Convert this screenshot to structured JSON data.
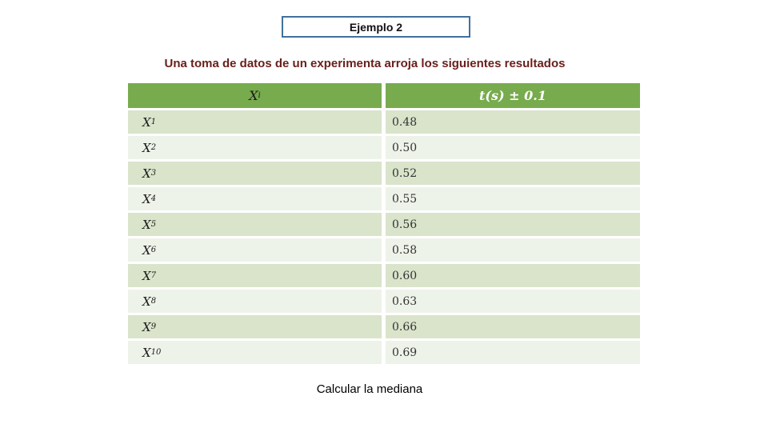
{
  "slide": {
    "background": "#ffffff"
  },
  "title_box": {
    "label": "Ejemplo 2",
    "border_color": "#41719C",
    "text_color": "#111111"
  },
  "subtitle": {
    "text": "Una toma de datos de un experimenta arroja los siguientes resultados",
    "color": "#69201C"
  },
  "table": {
    "header": {
      "col1_base": "X",
      "col1_sub": "i",
      "col2": "t(s) ± 0.1",
      "bg": "#77AB4D",
      "col1_text_color": "#1b1b1b",
      "col2_text_color": "#ffffff"
    },
    "band_dark": "#D9E4CB",
    "band_light": "#EEF3E9",
    "rows": [
      {
        "label_base": "X",
        "label_sub": "1",
        "value": "0.48"
      },
      {
        "label_base": "X",
        "label_sub": "2",
        "value": "0.50"
      },
      {
        "label_base": "X",
        "label_sub": "3",
        "value": "0.52"
      },
      {
        "label_base": "X",
        "label_sub": "4",
        "value": "0.55"
      },
      {
        "label_base": "X",
        "label_sub": "5",
        "value": "0.56"
      },
      {
        "label_base": "X",
        "label_sub": "6",
        "value": "0.58"
      },
      {
        "label_base": "X",
        "label_sub": "7",
        "value": "0.60"
      },
      {
        "label_base": "X",
        "label_sub": "8",
        "value": "0.63"
      },
      {
        "label_base": "X",
        "label_sub": "9",
        "value": "0.66"
      },
      {
        "label_base": "X",
        "label_sub": "10",
        "value": "0.69"
      }
    ]
  },
  "footer": {
    "text": "Calcular la mediana",
    "color": "#000000"
  },
  "chart_data": {
    "type": "table",
    "title": "Ejemplo 2",
    "columns": [
      "Xi",
      "t(s) ± 0.1"
    ],
    "rows": [
      [
        "X1",
        "0.48"
      ],
      [
        "X2",
        "0.50"
      ],
      [
        "X3",
        "0.52"
      ],
      [
        "X4",
        "0.55"
      ],
      [
        "X5",
        "0.56"
      ],
      [
        "X6",
        "0.58"
      ],
      [
        "X7",
        "0.60"
      ],
      [
        "X8",
        "0.63"
      ],
      [
        "X9",
        "0.66"
      ],
      [
        "X10",
        "0.69"
      ]
    ],
    "caption": "Calcular la mediana"
  }
}
